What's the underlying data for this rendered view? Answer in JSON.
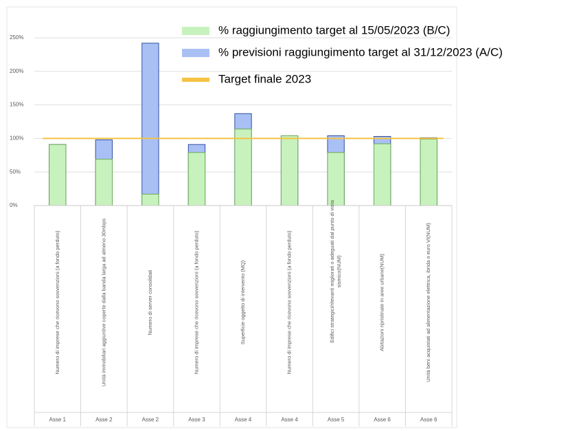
{
  "chart_data": {
    "type": "bar",
    "categories": [
      [
        "Numero di imprese che ricevono sovvenzioni (a fondo perduto)"
      ],
      [
        "Unità immobiliari aggiuntive coperte dalla banda larga ad almeno 30mbps"
      ],
      [
        "Numero di server consolidati"
      ],
      [
        "Numero di imprese che ricevono sovvenzioni (a fondo perduto)"
      ],
      [
        "Superficie oggetto di intervento (MQ)"
      ],
      [
        "Numero di imprese che ricevono sovvenzioni (a fondo perduto)"
      ],
      [
        "Edifici strategici/rilevanti migliorati o adeguati dal punto di vista",
        "sismico(NUM)"
      ],
      [
        "Abitazioni ripristinate in aree urbane(NUM)"
      ],
      [
        "Unità beni acquistati ad alimentazione elettrica, ibrida o euro VI(NUM)"
      ]
    ],
    "groups": [
      "Asse 1",
      "Asse 2",
      "Asse 2",
      "Asse 3",
      "Asse 4",
      "Asse 4",
      "Asse 5",
      "Asse 6",
      "Asse 6"
    ],
    "series": [
      {
        "name": "% previsioni raggiungimento target al 31/12/2023 (A/C)",
        "color": "#a9c0f5",
        "kind": "bar",
        "values": [
          91,
          98,
          242,
          91,
          137,
          104,
          104,
          103,
          101
        ]
      },
      {
        "name": "% raggiungimento target al 15/05/2023 (B/C)",
        "color": "#c8f2bd",
        "kind": "bar",
        "values": [
          91,
          69,
          17,
          79,
          114,
          104,
          79,
          92,
          99
        ]
      },
      {
        "name": "Target finale 2023",
        "color": "#f5c242",
        "kind": "line",
        "values": [
          100,
          100,
          100,
          100,
          100,
          100,
          100,
          100,
          100
        ]
      }
    ],
    "legend_order": [
      1,
      0,
      2
    ],
    "ylim": [
      0,
      250
    ],
    "yticks": [
      {
        "value": 0,
        "label": "0%"
      },
      {
        "value": 50,
        "label": "50%"
      },
      {
        "value": 100,
        "label": "100%"
      },
      {
        "value": 150,
        "label": "150%"
      },
      {
        "value": 200,
        "label": "200%"
      },
      {
        "value": 250,
        "label": "250%"
      }
    ],
    "grid": true
  }
}
